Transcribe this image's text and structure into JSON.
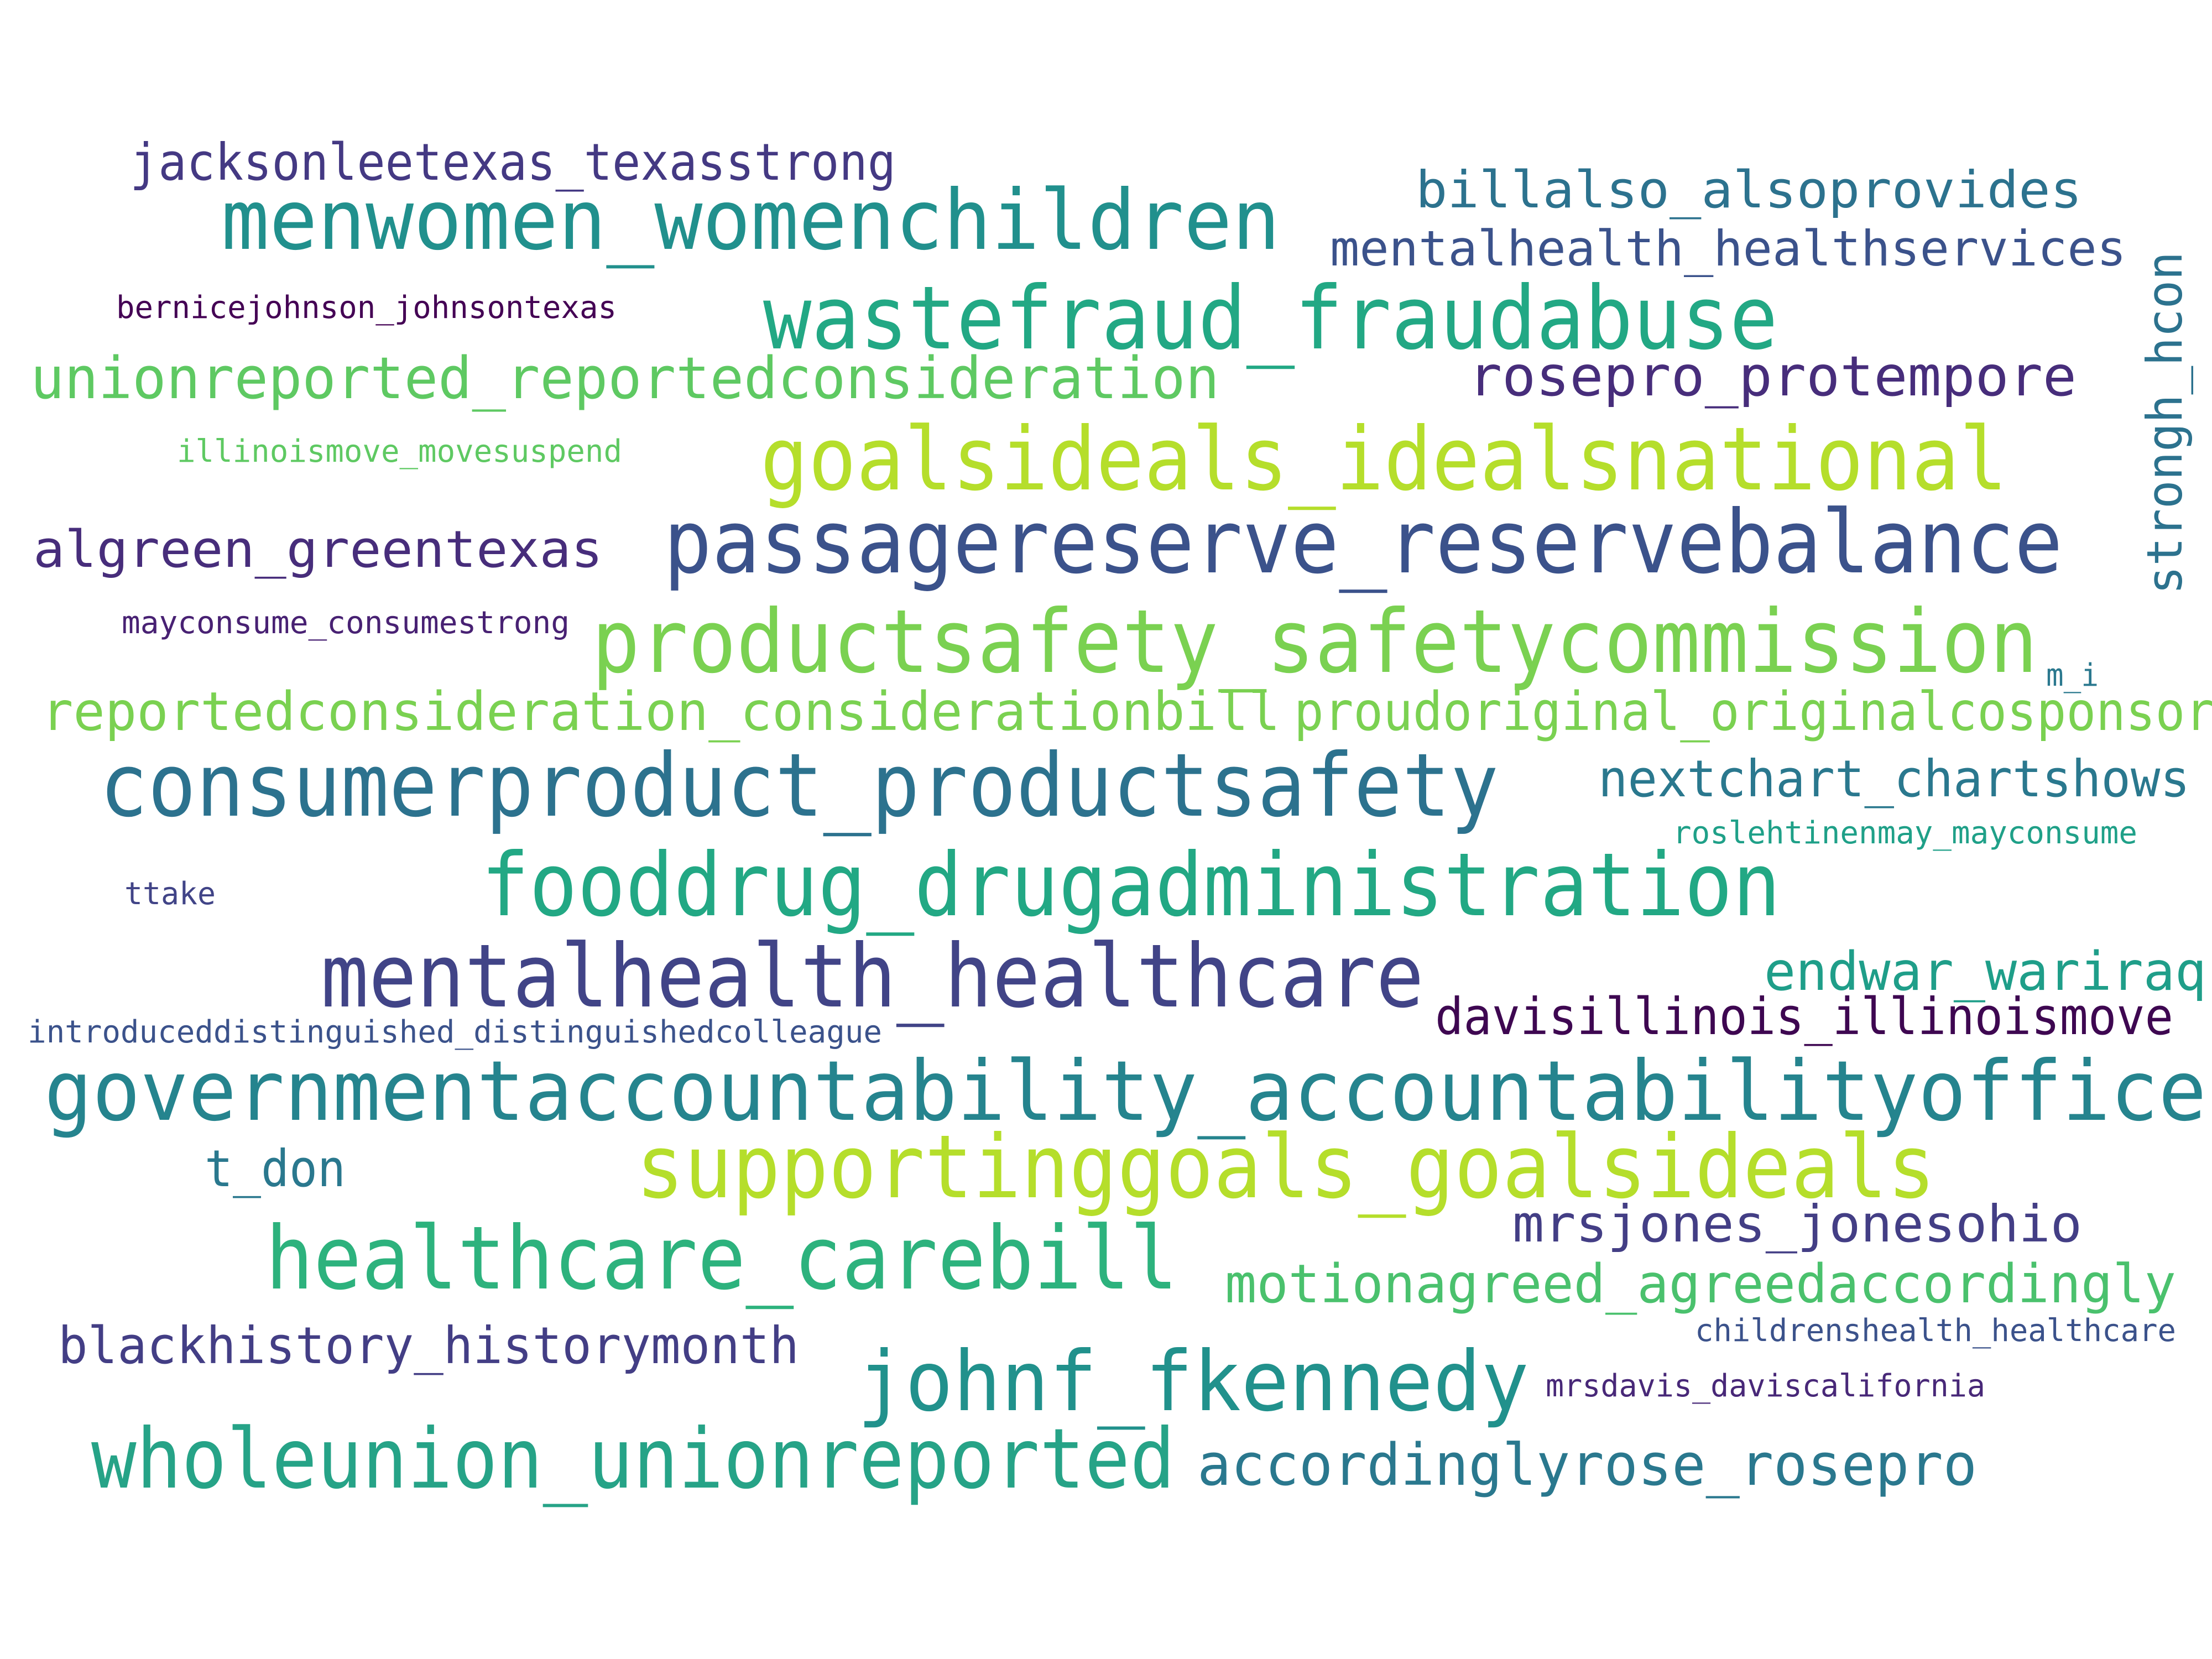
{
  "words": [
    {
      "text": "menwomen_womenchildren",
      "color": "#21908d"
    },
    {
      "text": "jacksonleetexas_texasstrong",
      "color": "#443983"
    },
    {
      "text": "billalso_alsoprovides",
      "color": "#2c728e"
    },
    {
      "text": "mentalhealth_healthservices",
      "color": "#3b528b"
    },
    {
      "text": "wastefraud_fraudabuse",
      "color": "#22a884"
    },
    {
      "text": "bernicejohnson_johnsontexas",
      "color": "#440154"
    },
    {
      "text": "unionreported_reportedconsideration",
      "color": "#5ec962"
    },
    {
      "text": "rosepro_protempore",
      "color": "#472d7b"
    },
    {
      "text": "strongh_hcon",
      "color": "#2c728e"
    },
    {
      "text": "goalsideals_idealsnational",
      "color": "#b5de2b"
    },
    {
      "text": "illinoismove_movesuspend",
      "color": "#5ec962"
    },
    {
      "text": "passagereserve_reservebalance",
      "color": "#3b528b"
    },
    {
      "text": "algreen_greentexas",
      "color": "#472d7b"
    },
    {
      "text": "mayconsume_consumestrong",
      "color": "#482173"
    },
    {
      "text": "productsafety_safetycommission",
      "color": "#7ad151"
    },
    {
      "text": "m_i",
      "color": "#2a788e"
    },
    {
      "text": "reportedconsideration_considerationbill",
      "color": "#7ad151"
    },
    {
      "text": "proudoriginal_originalcosponsor",
      "color": "#7ad151"
    },
    {
      "text": "consumerproduct_productsafety",
      "color": "#2c728e"
    },
    {
      "text": "nextchart_chartshows",
      "color": "#2a788e"
    },
    {
      "text": "roslehtinenmay_mayconsume",
      "color": "#1fa088"
    },
    {
      "text": "ttake",
      "color": "#414487"
    },
    {
      "text": "fooddrug_drugadministration",
      "color": "#22a884"
    },
    {
      "text": "mentalhealth_healthcare",
      "color": "#414487"
    },
    {
      "text": "endwar_wariraq",
      "color": "#1f9e89"
    },
    {
      "text": "introduceddistinguished_distinguishedcolleague",
      "color": "#3b528b"
    },
    {
      "text": "davisillinois_illinoismove",
      "color": "#3e0751"
    },
    {
      "text": "governmentaccountability_accountabilityoffice",
      "color": "#25848e"
    },
    {
      "text": "t_don",
      "color": "#2a788e"
    },
    {
      "text": "supportinggoals_goalsideals",
      "color": "#b5de2b"
    },
    {
      "text": "mrsjones_jonesohio",
      "color": "#433e85"
    },
    {
      "text": "healthcare_carebill",
      "color": "#2db27d"
    },
    {
      "text": "motionagreed_agreedaccordingly",
      "color": "#4ac16d"
    },
    {
      "text": "childrenshealth_healthcare",
      "color": "#3b528b"
    },
    {
      "text": "blackhistory_historymonth",
      "color": "#433e85"
    },
    {
      "text": "johnf_fkennedy",
      "color": "#21918c"
    },
    {
      "text": "mrsdavis_daviscalifornia",
      "color": "#482878"
    },
    {
      "text": "wholeunion_unionreported",
      "color": "#26a387"
    },
    {
      "text": "accordinglyrose_rosepro",
      "color": "#2a788e"
    }
  ]
}
